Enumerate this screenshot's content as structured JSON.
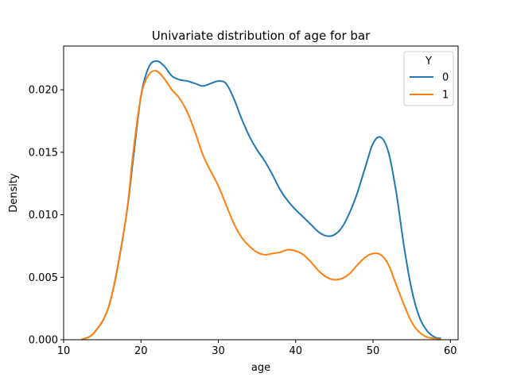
{
  "chart_data": {
    "type": "line",
    "title": "Univariate distribution of age for bar",
    "xlabel": "age",
    "ylabel": "Density",
    "xlim": [
      10,
      61
    ],
    "ylim": [
      0,
      0.0235
    ],
    "xticks": [
      10,
      20,
      30,
      40,
      50,
      60
    ],
    "yticks": [
      0.0,
      0.005,
      0.01,
      0.015,
      0.02
    ],
    "ytick_labels": [
      "0.000",
      "0.005",
      "0.010",
      "0.015",
      "0.020"
    ],
    "grid": false,
    "legend": {
      "title": "Y",
      "placement": "top-right"
    },
    "series": [
      {
        "name": "0",
        "color": "#1f77b4",
        "x": [
          12.3,
          14,
          16,
          18,
          19,
          20,
          21,
          22,
          23,
          24,
          25,
          26,
          27,
          28,
          29,
          30,
          31,
          32,
          33,
          34,
          35,
          36,
          37,
          38,
          39,
          40,
          41,
          42,
          43,
          44,
          45,
          46,
          47,
          48,
          49,
          50,
          51,
          52,
          53,
          54,
          55,
          56,
          57,
          58,
          58.8
        ],
        "y": [
          0.0,
          0.0006,
          0.003,
          0.0095,
          0.0145,
          0.0195,
          0.0218,
          0.0223,
          0.0219,
          0.0211,
          0.0208,
          0.0207,
          0.0205,
          0.0203,
          0.0205,
          0.0207,
          0.0205,
          0.0193,
          0.0177,
          0.0163,
          0.0152,
          0.0143,
          0.0132,
          0.012,
          0.0111,
          0.0104,
          0.0098,
          0.0092,
          0.0086,
          0.0083,
          0.0084,
          0.009,
          0.0102,
          0.0118,
          0.0138,
          0.0157,
          0.0162,
          0.015,
          0.0118,
          0.0075,
          0.004,
          0.0018,
          0.0007,
          0.0002,
          0.0001
        ]
      },
      {
        "name": "1",
        "color": "#ff7f0e",
        "x": [
          12.3,
          14,
          16,
          18,
          19,
          20,
          21,
          22,
          23,
          24,
          25,
          26,
          27,
          28,
          29,
          30,
          31,
          32,
          33,
          34,
          35,
          36,
          37,
          38,
          39,
          40,
          41,
          42,
          43,
          44,
          45,
          46,
          47,
          48,
          49,
          50,
          51,
          52,
          53,
          54,
          55,
          56,
          57,
          58,
          58.8
        ],
        "y": [
          0.0,
          0.0006,
          0.003,
          0.0095,
          0.015,
          0.0195,
          0.0212,
          0.0215,
          0.0209,
          0.02,
          0.0193,
          0.0182,
          0.0166,
          0.0148,
          0.0135,
          0.0123,
          0.0108,
          0.0093,
          0.0082,
          0.0075,
          0.007,
          0.0068,
          0.0069,
          0.007,
          0.0072,
          0.0071,
          0.0068,
          0.0062,
          0.0055,
          0.005,
          0.0048,
          0.0049,
          0.0053,
          0.006,
          0.0066,
          0.0069,
          0.0068,
          0.006,
          0.0044,
          0.0028,
          0.0014,
          0.0006,
          0.0002,
          0.0001,
          0.0
        ]
      }
    ]
  }
}
